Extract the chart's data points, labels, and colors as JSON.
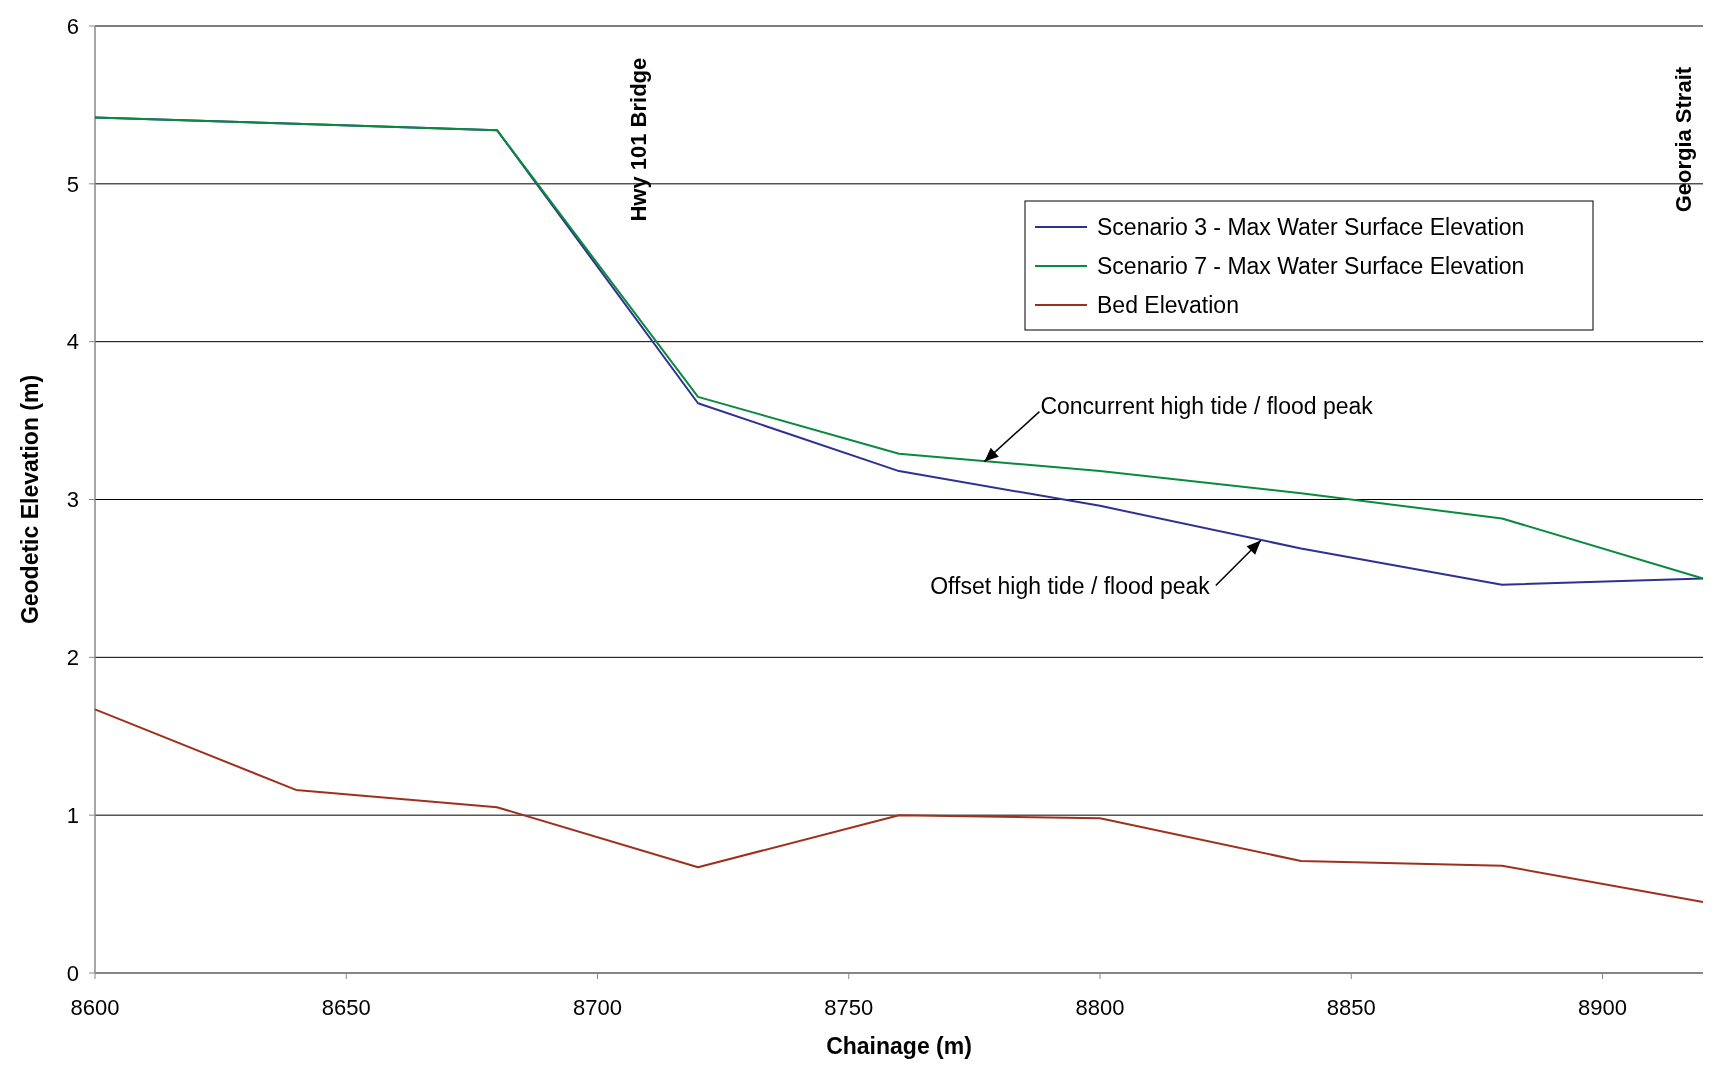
{
  "chart_data": {
    "type": "line",
    "xlabel": "Chainage (m)",
    "ylabel": "Geodetic Elevation (m)",
    "xlim": [
      8600,
      8920
    ],
    "xticks": [
      8600,
      8650,
      8700,
      8750,
      8800,
      8850,
      8900
    ],
    "ylim": [
      0,
      6
    ],
    "yticks": [
      0,
      1,
      2,
      3,
      4,
      5,
      6
    ],
    "grid": "y",
    "legend": "top right",
    "marker": "none",
    "line_style": "solid",
    "x": [
      8600,
      8640,
      8680,
      8720,
      8760,
      8800,
      8840,
      8880,
      8920
    ],
    "series": [
      {
        "name": "Scenario 3 - Max Water Surface Elevation",
        "color": "#2e3192",
        "values": [
          5.42,
          5.38,
          5.34,
          3.61,
          3.18,
          2.96,
          2.69,
          2.46,
          2.5
        ]
      },
      {
        "name": "Scenario 7 - Max Water Surface Elevation",
        "color": "#0a8a3c",
        "values": [
          5.42,
          5.38,
          5.34,
          3.65,
          3.29,
          3.18,
          3.04,
          2.88,
          2.5
        ]
      },
      {
        "name": "Bed Elevation",
        "color": "#a0301e",
        "values": [
          1.67,
          1.16,
          1.05,
          0.67,
          1.0,
          0.98,
          0.71,
          0.68,
          0.45
        ]
      }
    ],
    "annotations": [
      "Hwy 101 Bridge",
      "Georgia Strait",
      {
        "text": "Concurrent high tide / flood peak",
        "x": 8777,
        "y": 3.24
      },
      {
        "text": "Offset high tide / flood peak",
        "x": 8832,
        "y": 2.74
      }
    ]
  }
}
